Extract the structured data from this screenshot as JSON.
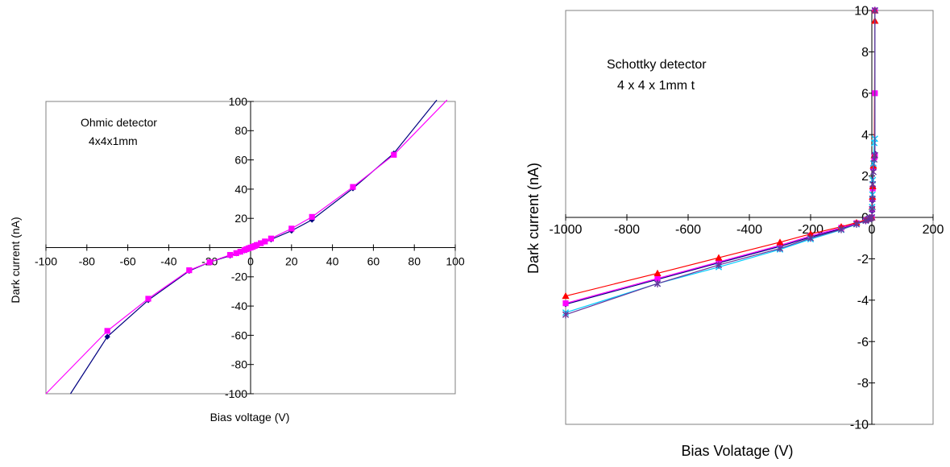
{
  "chart_data": [
    {
      "type": "line",
      "annotation_lines": [
        "Ohmic detector",
        "4x4x1mm"
      ],
      "xlabel": "Bias voltage (V)",
      "ylabel": "Dark current (nA)",
      "xlim": [
        -100,
        100
      ],
      "ylim": [
        -100,
        100
      ],
      "x_ticks": [
        -100,
        -80,
        -60,
        -40,
        -20,
        0,
        20,
        40,
        60,
        80,
        100
      ],
      "y_ticks": [
        -100,
        -80,
        -60,
        -40,
        -20,
        20,
        40,
        60,
        80,
        100
      ],
      "grid": false,
      "series": [
        {
          "color": "#000080",
          "marker": "diamond",
          "x": [
            -88,
            -70,
            -50,
            -30,
            -20,
            -10,
            -7,
            -5,
            -3,
            -2,
            -1,
            0,
            1,
            2,
            3,
            5,
            7,
            10,
            20,
            30,
            50,
            70,
            91
          ],
          "y": [
            -100,
            -61,
            -36,
            -16,
            -10,
            -5.5,
            -4,
            -3,
            -2,
            -1.2,
            -0.6,
            0,
            0.6,
            1.2,
            2,
            3,
            4,
            5.5,
            11.5,
            19,
            40.5,
            64.5,
            101
          ],
          "marked_from": 1,
          "marked_to": 21
        },
        {
          "color": "#ff00ff",
          "marker": "square",
          "x": [
            -100,
            -70,
            -50,
            -30,
            -20,
            -10,
            -7,
            -5,
            -3,
            -2,
            -1,
            0,
            1,
            2,
            3,
            5,
            7,
            10,
            20,
            30,
            50,
            70,
            96
          ],
          "y": [
            -100,
            -57,
            -35,
            -15.5,
            -10,
            -5,
            -3.8,
            -2.8,
            -1.7,
            -1.1,
            -0.5,
            0,
            0.5,
            1.1,
            1.8,
            3,
            4.2,
            6.2,
            13,
            21,
            41.5,
            63.5,
            101
          ],
          "marked_from": 1,
          "marked_to": 21
        }
      ]
    },
    {
      "type": "line",
      "annotation_lines": [
        "Schottky detector",
        "4 x 4 x 1mm t"
      ],
      "xlabel": "Bias Volatage (V)",
      "ylabel": "Dark current (nA)",
      "xlim": [
        -1000,
        200
      ],
      "ylim": [
        -10,
        10
      ],
      "x_ticks": [
        -1000,
        -800,
        -600,
        -400,
        -200,
        0,
        200
      ],
      "y_ticks": [
        -10,
        -8,
        -6,
        -4,
        -2,
        0,
        2,
        4,
        6,
        8,
        10
      ],
      "grid": false,
      "series": [
        {
          "color": "#000080",
          "marker": "diamond",
          "x": [
            -1000,
            -700,
            -500,
            -300,
            -200,
            -100,
            -50,
            -20,
            -10,
            -5,
            0,
            1,
            2,
            3,
            5,
            8,
            10,
            10,
            10
          ],
          "y": [
            -4.2,
            -3.0,
            -2.2,
            -1.4,
            -0.95,
            -0.55,
            -0.3,
            -0.15,
            -0.08,
            -0.04,
            0,
            0.3,
            0.8,
            1.5,
            2.5,
            3.0,
            3.1,
            6,
            10
          ]
        },
        {
          "color": "#ff00ff",
          "marker": "square",
          "x": [
            -1000,
            -700,
            -500,
            -300,
            -200,
            -100,
            -50,
            -20,
            -10,
            -5,
            0,
            1,
            2,
            3,
            5,
            8,
            10,
            10,
            10
          ],
          "y": [
            -4.15,
            -2.95,
            -2.15,
            -1.35,
            -0.9,
            -0.5,
            -0.28,
            -0.14,
            -0.07,
            -0.04,
            0,
            0.4,
            0.9,
            1.4,
            2.4,
            2.9,
            3.0,
            6,
            10
          ]
        },
        {
          "color": "#ff0000",
          "marker": "triangle",
          "x": [
            -1000,
            -700,
            -500,
            -300,
            -200,
            -100,
            -50,
            -20,
            -10,
            -5,
            0,
            1,
            2,
            3,
            5,
            8,
            10,
            10
          ],
          "y": [
            -3.8,
            -2.7,
            -1.95,
            -1.2,
            -0.8,
            -0.45,
            -0.25,
            -0.12,
            -0.06,
            -0.03,
            0,
            0.5,
            1.0,
            1.5,
            2.5,
            3.0,
            9.5,
            10
          ]
        },
        {
          "color": "#00ccff",
          "marker": "x",
          "x": [
            -1000,
            -700,
            -500,
            -300,
            -200,
            -100,
            -50,
            -20,
            -10,
            -5,
            0,
            1,
            2,
            3,
            5,
            8,
            10,
            10
          ],
          "y": [
            -4.6,
            -3.2,
            -2.4,
            -1.55,
            -1.05,
            -0.6,
            -0.33,
            -0.16,
            -0.08,
            -0.04,
            0,
            0.5,
            1.1,
            1.8,
            2.6,
            3.6,
            3.8,
            10
          ]
        },
        {
          "color": "#663399",
          "marker": "asterisk",
          "x": [
            -1000,
            -700,
            -500,
            -300,
            -200,
            -100,
            -50,
            -20,
            -10,
            -5,
            0,
            1,
            2,
            3,
            5,
            8,
            10,
            10
          ],
          "y": [
            -4.7,
            -3.2,
            -2.3,
            -1.5,
            -1.0,
            -0.58,
            -0.32,
            -0.15,
            -0.08,
            -0.04,
            0,
            0.4,
            0.9,
            1.6,
            2.2,
            2.8,
            3.0,
            10
          ]
        }
      ]
    }
  ]
}
